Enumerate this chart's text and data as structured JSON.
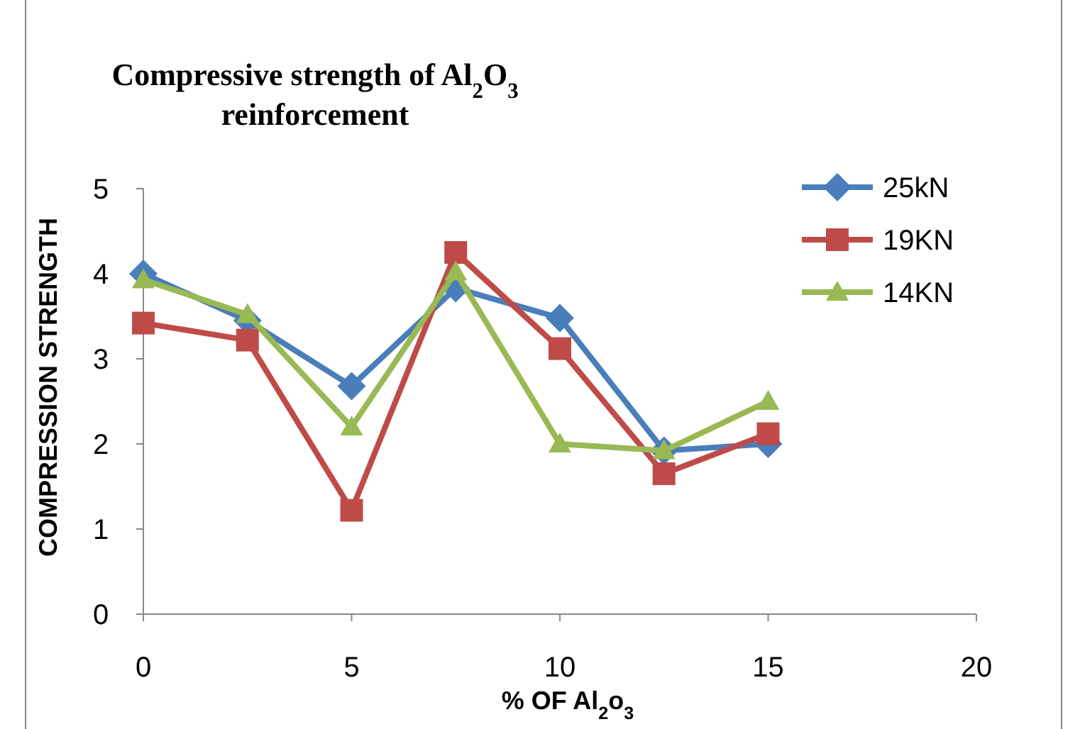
{
  "chart_data": {
    "type": "line",
    "title": "Compressive strength of Al$_{2}$O$_{3}$ reinforcement",
    "xlabel": "% OF Al$_{2}$o$_{3}$",
    "ylabel": "COMPRESSION STRENGTH",
    "x": [
      0,
      2.5,
      5,
      7.5,
      10,
      12.5,
      15
    ],
    "series": [
      {
        "name": "25kN",
        "color": "#4a7ebb",
        "marker": "diamond",
        "values": [
          4.0,
          3.45,
          2.68,
          3.83,
          3.48,
          1.92,
          2.0
        ]
      },
      {
        "name": "19KN",
        "color": "#be4b48",
        "marker": "square",
        "values": [
          3.42,
          3.22,
          1.22,
          4.25,
          3.12,
          1.65,
          2.12
        ]
      },
      {
        "name": "14KN",
        "color": "#98b954",
        "marker": "triangle",
        "values": [
          3.93,
          3.52,
          2.2,
          4.02,
          2.0,
          1.92,
          2.5
        ]
      }
    ],
    "xlim": [
      0,
      20
    ],
    "xticks": [
      0,
      5,
      10,
      15,
      20
    ],
    "ylim": [
      0,
      5
    ],
    "yticks": [
      0,
      1,
      2,
      3,
      4,
      5
    ],
    "grid": false,
    "legend": "top right",
    "line_style": "solid"
  }
}
